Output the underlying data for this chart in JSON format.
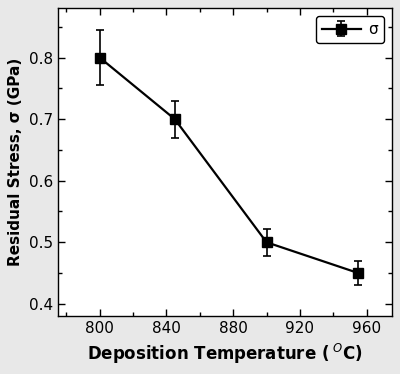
{
  "x": [
    800,
    845,
    900,
    955
  ],
  "y": [
    0.8,
    0.7,
    0.5,
    0.45
  ],
  "yerr": [
    0.045,
    0.03,
    0.022,
    0.02
  ],
  "ylabel": "Residual Stress, σ (GPa)",
  "xlim": [
    775,
    975
  ],
  "ylim": [
    0.38,
    0.88
  ],
  "xticks": [
    800,
    840,
    880,
    920,
    960
  ],
  "yticks": [
    0.4,
    0.5,
    0.6,
    0.7,
    0.8
  ],
  "line_color": "black",
  "marker": "s",
  "markersize": 7,
  "linewidth": 1.6,
  "capsize": 3,
  "elinewidth": 1.2,
  "capthick": 1.2,
  "background_color": "#e8e8e8",
  "axes_facecolor": "#ffffff",
  "legend_label_sigma": "σ"
}
